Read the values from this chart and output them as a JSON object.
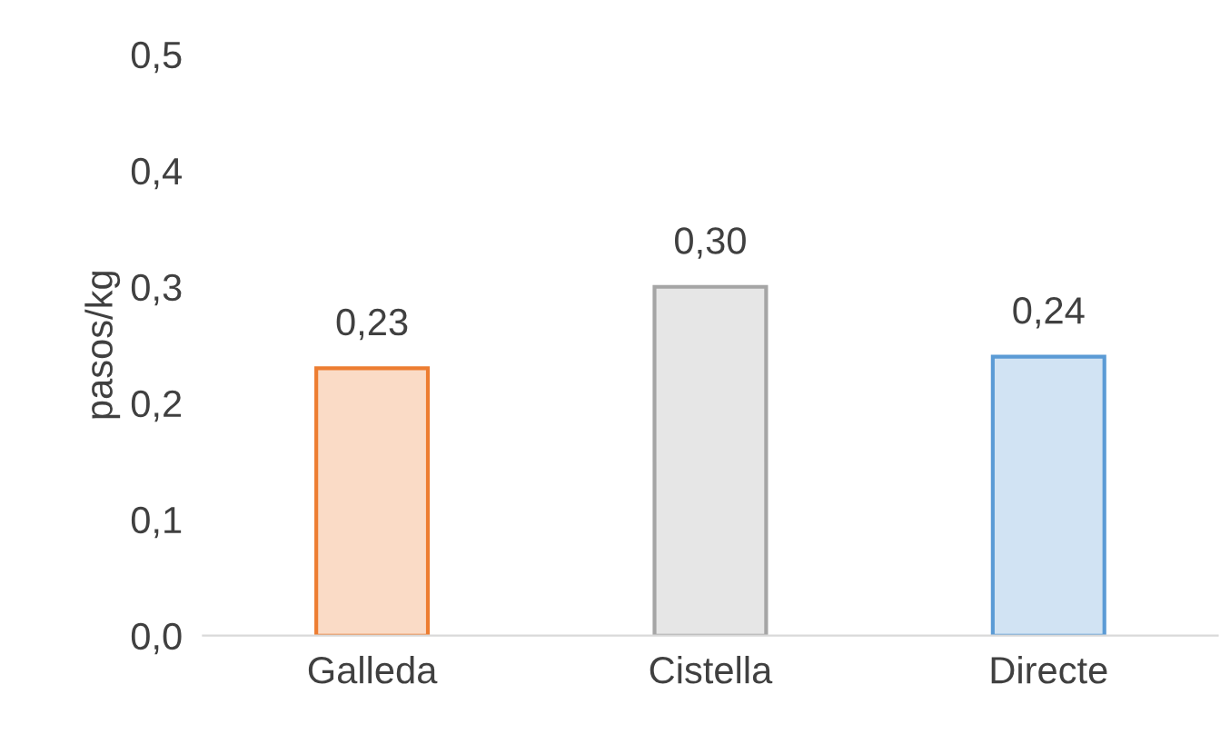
{
  "chart_data": {
    "type": "bar",
    "categories": [
      "Galleda",
      "Cistella",
      "Directe"
    ],
    "values": [
      0.23,
      0.3,
      0.24
    ],
    "value_labels": [
      "0,23",
      "0,30",
      "0,24"
    ],
    "colors": [
      "#ed7d31",
      "#a5a5a5",
      "#5b9bd5"
    ],
    "ylabel": "pasos/kg",
    "ylim": [
      0,
      0.5
    ],
    "yticks": [
      {
        "value": 0,
        "label": "0,0"
      },
      {
        "value": 0.1,
        "label": "0,1"
      },
      {
        "value": 0.2,
        "label": "0,2"
      },
      {
        "value": 0.3,
        "label": "0,3"
      },
      {
        "value": 0.4,
        "label": "0,4"
      },
      {
        "value": 0.5,
        "label": "0,5"
      }
    ],
    "grid": false,
    "legend": false
  }
}
